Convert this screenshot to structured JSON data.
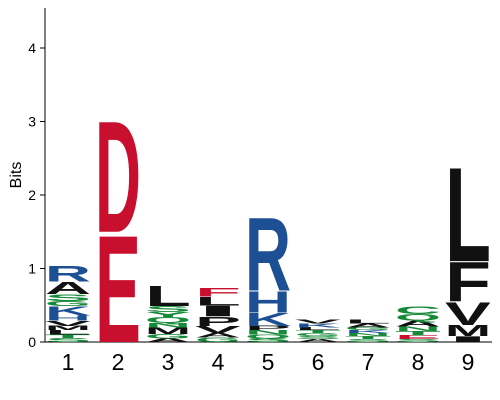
{
  "chart_data": {
    "type": "sequence-logo",
    "ylabel": "Bits",
    "ylim": [
      0,
      4.5
    ],
    "yticks": [
      "0",
      "1",
      "2",
      "3",
      "4"
    ],
    "yticks_values": [
      0,
      1,
      2,
      3,
      4
    ],
    "positions": [
      "1",
      "2",
      "3",
      "4",
      "5",
      "6",
      "7",
      "8",
      "9"
    ],
    "colors": {
      "acidic": "#c8102e",
      "basic": "#1c4f93",
      "polar": "#178a3a",
      "hydrophobic": "#111111",
      "neutral": "#6f6f6f"
    },
    "columns": [
      {
        "position": "1",
        "letters": [
          {
            "aa": "S",
            "bits": 0.05,
            "color": "polar"
          },
          {
            "aa": "T",
            "bits": 0.05,
            "color": "polar"
          },
          {
            "aa": "L",
            "bits": 0.06,
            "color": "hydrophobic"
          },
          {
            "aa": "M",
            "bits": 0.06,
            "color": "hydrophobic"
          },
          {
            "aa": "V",
            "bits": 0.07,
            "color": "hydrophobic"
          },
          {
            "aa": "H",
            "bits": 0.07,
            "color": "basic"
          },
          {
            "aa": "K",
            "bits": 0.13,
            "color": "basic"
          },
          {
            "aa": "G",
            "bits": 0.07,
            "color": "polar"
          },
          {
            "aa": "S",
            "bits": 0.09,
            "color": "polar"
          },
          {
            "aa": "A",
            "bits": 0.17,
            "color": "hydrophobic"
          },
          {
            "aa": "R",
            "bits": 0.22,
            "color": "basic"
          }
        ]
      },
      {
        "position": "2",
        "letters": [
          {
            "aa": "E",
            "bits": 1.5,
            "color": "acidic"
          },
          {
            "aa": "D",
            "bits": 1.56,
            "color": "acidic"
          }
        ]
      },
      {
        "position": "3",
        "letters": [
          {
            "aa": "A",
            "bits": 0.05,
            "color": "hydrophobic"
          },
          {
            "aa": "G",
            "bits": 0.06,
            "color": "polar"
          },
          {
            "aa": "M",
            "bits": 0.09,
            "color": "hydrophobic"
          },
          {
            "aa": "N",
            "bits": 0.06,
            "color": "polar"
          },
          {
            "aa": "Q",
            "bits": 0.08,
            "color": "polar"
          },
          {
            "aa": "Y",
            "bits": 0.07,
            "color": "polar"
          },
          {
            "aa": "S",
            "bits": 0.08,
            "color": "polar"
          },
          {
            "aa": "L",
            "bits": 0.28,
            "color": "hydrophobic"
          }
        ]
      },
      {
        "position": "4",
        "letters": [
          {
            "aa": "G",
            "bits": 0.06,
            "color": "polar"
          },
          {
            "aa": "A",
            "bits": 0.06,
            "color": "hydrophobic"
          },
          {
            "aa": "V",
            "bits": 0.1,
            "color": "hydrophobic"
          },
          {
            "aa": "P",
            "bits": 0.13,
            "color": "hydrophobic"
          },
          {
            "aa": "I",
            "bits": 0.15,
            "color": "hydrophobic"
          },
          {
            "aa": "L",
            "bits": 0.12,
            "color": "hydrophobic"
          },
          {
            "aa": "F",
            "bits": 0.12,
            "color": "acidic"
          }
        ]
      },
      {
        "position": "5",
        "letters": [
          {
            "aa": "S",
            "bits": 0.05,
            "color": "polar"
          },
          {
            "aa": "Q",
            "bits": 0.05,
            "color": "polar"
          },
          {
            "aa": "N",
            "bits": 0.06,
            "color": "polar"
          },
          {
            "aa": "P",
            "bits": 0.06,
            "color": "hydrophobic"
          },
          {
            "aa": "K",
            "bits": 0.18,
            "color": "basic"
          },
          {
            "aa": "H",
            "bits": 0.3,
            "color": "basic"
          },
          {
            "aa": "R",
            "bits": 1.03,
            "color": "basic"
          }
        ]
      },
      {
        "position": "6",
        "letters": [
          {
            "aa": "A",
            "bits": 0.04,
            "color": "hydrophobic"
          },
          {
            "aa": "S",
            "bits": 0.04,
            "color": "polar"
          },
          {
            "aa": "G",
            "bits": 0.04,
            "color": "polar"
          },
          {
            "aa": "T",
            "bits": 0.04,
            "color": "polar"
          },
          {
            "aa": "L",
            "bits": 0.04,
            "color": "hydrophobic"
          },
          {
            "aa": "K",
            "bits": 0.05,
            "color": "basic"
          },
          {
            "aa": "V",
            "bits": 0.05,
            "color": "hydrophobic"
          }
        ]
      },
      {
        "position": "7",
        "letters": [
          {
            "aa": "S",
            "bits": 0.04,
            "color": "polar"
          },
          {
            "aa": "T",
            "bits": 0.04,
            "color": "polar"
          },
          {
            "aa": "N",
            "bits": 0.04,
            "color": "polar"
          },
          {
            "aa": "K",
            "bits": 0.04,
            "color": "basic"
          },
          {
            "aa": "G",
            "bits": 0.04,
            "color": "polar"
          },
          {
            "aa": "A",
            "bits": 0.05,
            "color": "hydrophobic"
          },
          {
            "aa": "L",
            "bits": 0.05,
            "color": "hydrophobic"
          }
        ]
      },
      {
        "position": "8",
        "letters": [
          {
            "aa": "S",
            "bits": 0.04,
            "color": "polar"
          },
          {
            "aa": "E",
            "bits": 0.05,
            "color": "acidic"
          },
          {
            "aa": "T",
            "bits": 0.06,
            "color": "polar"
          },
          {
            "aa": "N",
            "bits": 0.06,
            "color": "polar"
          },
          {
            "aa": "A",
            "bits": 0.08,
            "color": "hydrophobic"
          },
          {
            "aa": "Q",
            "bits": 0.09,
            "color": "polar"
          },
          {
            "aa": "C",
            "bits": 0.11,
            "color": "polar"
          }
        ]
      },
      {
        "position": "9",
        "letters": [
          {
            "aa": "I",
            "bits": 0.08,
            "color": "hydrophobic"
          },
          {
            "aa": "M",
            "bits": 0.15,
            "color": "hydrophobic"
          },
          {
            "aa": "V",
            "bits": 0.32,
            "color": "hydrophobic"
          },
          {
            "aa": "F",
            "bits": 0.55,
            "color": "hydrophobic"
          },
          {
            "aa": "L",
            "bits": 1.32,
            "color": "hydrophobic"
          }
        ]
      }
    ]
  }
}
